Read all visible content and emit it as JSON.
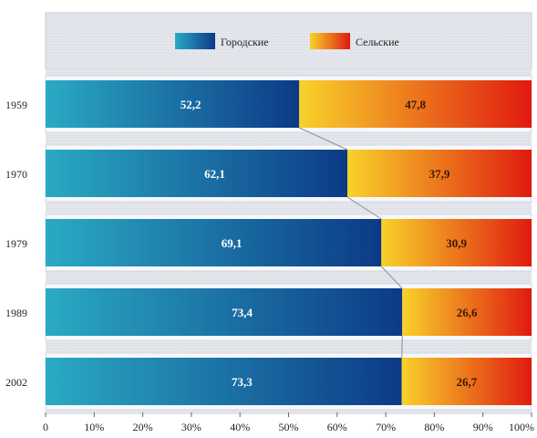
{
  "chart_data": {
    "type": "bar",
    "orientation": "horizontal",
    "stacked": "percent",
    "categories": [
      "1959",
      "1970",
      "1979",
      "1989",
      "2002"
    ],
    "series": [
      {
        "name": "Городские",
        "values": [
          52.2,
          62.1,
          69.1,
          73.4,
          73.3
        ],
        "color_start": "#2aaac4",
        "color_end": "#0c3a86"
      },
      {
        "name": "Сельские",
        "values": [
          47.8,
          37.9,
          30.9,
          26.6,
          26.7
        ],
        "color_start": "#f8d22a",
        "color_end": "#e01a10"
      }
    ],
    "value_labels": [
      [
        "52,2",
        "62,1",
        "69,1",
        "73,4",
        "73,3"
      ],
      [
        "47,8",
        "37,9",
        "30,9",
        "26,6",
        "26,7"
      ]
    ],
    "x_ticks": [
      "0",
      "10%",
      "20%",
      "30%",
      "40%",
      "50%",
      "60%",
      "70%",
      "80%",
      "90%",
      "100%"
    ],
    "xlim": [
      0,
      100
    ],
    "legend_position": "top",
    "series_lines": true,
    "grid": false
  }
}
